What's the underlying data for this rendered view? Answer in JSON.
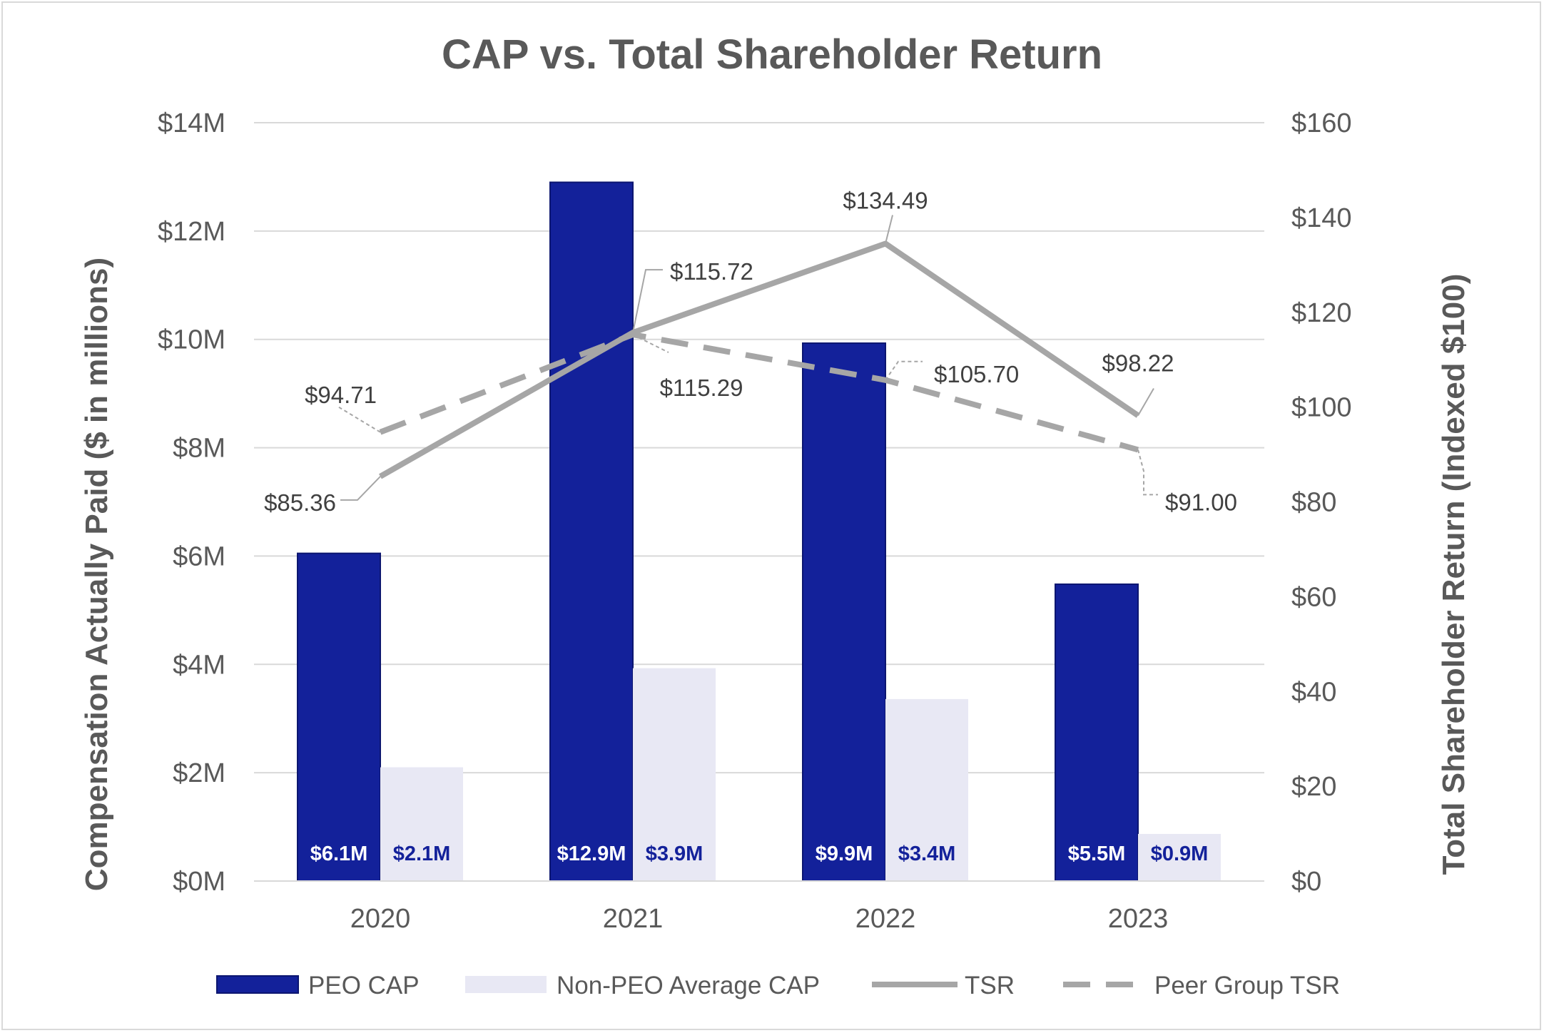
{
  "chart_data": {
    "type": "bar",
    "title": "CAP vs. Total Shareholder Return",
    "ylabel": "Compensation Actually Paid ($ in millions)",
    "y2label": "Total Shareholder Return (Indexed $100)",
    "categories": [
      "2020",
      "2021",
      "2022",
      "2023"
    ],
    "ylim": [
      0,
      14
    ],
    "y2lim": [
      0,
      160
    ],
    "y_ticks": [
      "$0M",
      "$2M",
      "$4M",
      "$6M",
      "$8M",
      "$10M",
      "$12M",
      "$14M"
    ],
    "y2_ticks": [
      "$0",
      "$20",
      "$40",
      "$60",
      "$80",
      "$100",
      "$120",
      "$140",
      "$160"
    ],
    "grid": true,
    "legend_position": "bottom",
    "series": [
      {
        "name": "PEO CAP",
        "type": "bar",
        "axis": "left",
        "color": "#13219a",
        "label_color": "#ffffff",
        "values": [
          6.05,
          12.9,
          9.93,
          5.48
        ],
        "labels": [
          "$6.1M",
          "$12.9M",
          "$9.9M",
          "$5.5M"
        ]
      },
      {
        "name": "Non-PEO Average CAP",
        "type": "bar",
        "axis": "left",
        "color": "#e8e8f4",
        "label_color": "#13219a",
        "values": [
          2.1,
          3.93,
          3.36,
          0.87
        ],
        "labels": [
          "$2.1M",
          "$3.9M",
          "$3.4M",
          "$0.9M"
        ]
      },
      {
        "name": "TSR",
        "type": "line",
        "axis": "right",
        "color": "#a6a6a6",
        "dash": "solid",
        "values": [
          85.36,
          115.72,
          134.49,
          98.22
        ],
        "labels": [
          "$85.36",
          "$115.72",
          "$134.49",
          "$98.22"
        ]
      },
      {
        "name": "Peer Group TSR",
        "type": "line",
        "axis": "right",
        "color": "#a6a6a6",
        "dash": "dashed",
        "values": [
          94.71,
          115.29,
          105.7,
          91.0
        ],
        "labels": [
          "$94.71",
          "$115.29",
          "$105.70",
          "$91.00"
        ]
      }
    ]
  }
}
